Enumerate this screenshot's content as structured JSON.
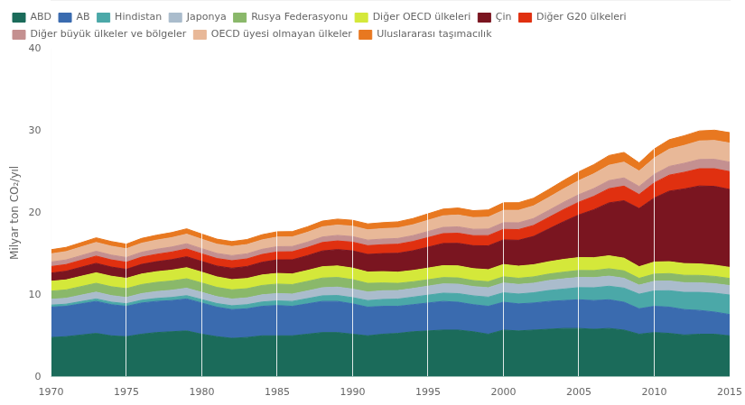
{
  "chart_data": {
    "type": "area",
    "stacked": true,
    "ylabel": "Milyar ton CO₂/yıl",
    "x": [
      1970,
      1971,
      1972,
      1973,
      1974,
      1975,
      1976,
      1977,
      1978,
      1979,
      1980,
      1981,
      1982,
      1983,
      1984,
      1985,
      1986,
      1987,
      1988,
      1989,
      1990,
      1991,
      1992,
      1993,
      1994,
      1995,
      1996,
      1997,
      1998,
      1999,
      2000,
      2001,
      2002,
      2003,
      2004,
      2005,
      2006,
      2007,
      2008,
      2009,
      2010,
      2011,
      2012,
      2013,
      2014,
      2015
    ],
    "series": [
      {
        "name": "ABD",
        "color": "#1b6b5a",
        "values": [
          4.8,
          4.9,
          5.1,
          5.3,
          5.0,
          4.9,
          5.2,
          5.4,
          5.5,
          5.6,
          5.2,
          4.9,
          4.7,
          4.8,
          5.0,
          5.0,
          5.0,
          5.2,
          5.4,
          5.4,
          5.2,
          5.0,
          5.2,
          5.3,
          5.5,
          5.6,
          5.7,
          5.7,
          5.5,
          5.2,
          5.7,
          5.6,
          5.7,
          5.8,
          5.9,
          5.9,
          5.8,
          5.9,
          5.7,
          5.2,
          5.4,
          5.3,
          5.1,
          5.2,
          5.2,
          5.0
        ]
      },
      {
        "name": "AB",
        "color": "#3a6baf",
        "values": [
          3.7,
          3.7,
          3.8,
          3.9,
          3.8,
          3.7,
          3.8,
          3.8,
          3.8,
          3.9,
          3.8,
          3.6,
          3.5,
          3.5,
          3.6,
          3.7,
          3.6,
          3.7,
          3.8,
          3.8,
          3.7,
          3.5,
          3.4,
          3.3,
          3.3,
          3.4,
          3.5,
          3.4,
          3.3,
          3.4,
          3.4,
          3.3,
          3.3,
          3.4,
          3.4,
          3.5,
          3.5,
          3.5,
          3.4,
          3.1,
          3.2,
          3.2,
          3.1,
          2.9,
          2.7,
          2.6
        ]
      },
      {
        "name": "Hindistan",
        "color": "#4ba8a8",
        "values": [
          0.25,
          0.26,
          0.28,
          0.3,
          0.31,
          0.32,
          0.34,
          0.36,
          0.38,
          0.4,
          0.42,
          0.44,
          0.47,
          0.5,
          0.53,
          0.56,
          0.6,
          0.64,
          0.68,
          0.72,
          0.76,
          0.8,
          0.84,
          0.88,
          0.92,
          0.96,
          1.0,
          1.05,
          1.08,
          1.12,
          1.15,
          1.2,
          1.25,
          1.32,
          1.4,
          1.48,
          1.56,
          1.65,
          1.72,
          1.78,
          1.88,
          2.0,
          2.1,
          2.2,
          2.3,
          2.38
        ]
      },
      {
        "name": "Japonya",
        "color": "#aabccc",
        "values": [
          0.7,
          0.72,
          0.78,
          0.83,
          0.8,
          0.76,
          0.81,
          0.84,
          0.88,
          0.91,
          0.88,
          0.84,
          0.82,
          0.83,
          0.87,
          0.9,
          0.9,
          0.93,
          0.99,
          1.02,
          1.05,
          1.05,
          1.06,
          1.04,
          1.05,
          1.1,
          1.14,
          1.15,
          1.13,
          1.15,
          1.2,
          1.17,
          1.17,
          1.22,
          1.25,
          1.24,
          1.23,
          1.23,
          1.2,
          1.1,
          1.17,
          1.19,
          1.18,
          1.17,
          1.16,
          1.15
        ]
      },
      {
        "name": "Rusya Federasyonu",
        "color": "#8ab86a",
        "values": [
          1.0,
          1.02,
          1.05,
          1.08,
          1.08,
          1.08,
          1.1,
          1.12,
          1.13,
          1.15,
          1.15,
          1.13,
          1.12,
          1.12,
          1.14,
          1.15,
          1.15,
          1.17,
          1.18,
          1.18,
          1.15,
          1.05,
          0.95,
          0.88,
          0.82,
          0.78,
          0.77,
          0.76,
          0.73,
          0.73,
          0.75,
          0.75,
          0.77,
          0.79,
          0.82,
          0.85,
          0.87,
          0.9,
          0.9,
          0.83,
          0.88,
          0.9,
          0.9,
          0.9,
          0.89,
          0.87
        ]
      },
      {
        "name": "Diğer OECD ülkeleri",
        "color": "#d4e83a",
        "values": [
          1.2,
          1.22,
          1.25,
          1.28,
          1.28,
          1.25,
          1.28,
          1.3,
          1.32,
          1.35,
          1.32,
          1.28,
          1.25,
          1.25,
          1.28,
          1.3,
          1.3,
          1.33,
          1.38,
          1.4,
          1.4,
          1.38,
          1.38,
          1.37,
          1.38,
          1.42,
          1.45,
          1.47,
          1.45,
          1.47,
          1.5,
          1.48,
          1.48,
          1.5,
          1.55,
          1.57,
          1.57,
          1.58,
          1.55,
          1.42,
          1.47,
          1.45,
          1.43,
          1.4,
          1.37,
          1.35
        ]
      },
      {
        "name": "Çin",
        "color": "#7a1520",
        "values": [
          1.0,
          1.05,
          1.1,
          1.15,
          1.12,
          1.1,
          1.18,
          1.22,
          1.28,
          1.33,
          1.3,
          1.32,
          1.38,
          1.45,
          1.55,
          1.65,
          1.72,
          1.8,
          1.92,
          2.0,
          2.1,
          2.15,
          2.2,
          2.3,
          2.4,
          2.55,
          2.7,
          2.75,
          2.8,
          2.9,
          3.0,
          3.15,
          3.45,
          4.0,
          4.6,
          5.2,
          5.85,
          6.45,
          7.0,
          7.1,
          7.8,
          8.6,
          9.1,
          9.5,
          9.6,
          9.5
        ]
      },
      {
        "name": "Diğer G20 ülkeleri",
        "color": "#e03010",
        "values": [
          0.8,
          0.82,
          0.85,
          0.88,
          0.87,
          0.86,
          0.88,
          0.9,
          0.92,
          0.95,
          0.93,
          0.92,
          0.92,
          0.93,
          0.95,
          0.97,
          0.98,
          1.0,
          1.03,
          1.05,
          1.06,
          1.06,
          1.08,
          1.1,
          1.13,
          1.17,
          1.2,
          1.23,
          1.22,
          1.25,
          1.28,
          1.3,
          1.34,
          1.4,
          1.48,
          1.55,
          1.63,
          1.73,
          1.78,
          1.7,
          1.85,
          1.95,
          2.03,
          2.1,
          2.15,
          2.17
        ]
      },
      {
        "name": "Diğer büyük ülkeler ve bölgeler",
        "color": "#c49090",
        "values": [
          0.55,
          0.56,
          0.57,
          0.59,
          0.59,
          0.58,
          0.6,
          0.61,
          0.62,
          0.64,
          0.63,
          0.62,
          0.62,
          0.62,
          0.63,
          0.64,
          0.64,
          0.65,
          0.67,
          0.68,
          0.68,
          0.68,
          0.69,
          0.7,
          0.72,
          0.74,
          0.76,
          0.78,
          0.78,
          0.8,
          0.82,
          0.83,
          0.84,
          0.86,
          0.89,
          0.92,
          0.95,
          0.98,
          1.0,
          0.98,
          1.03,
          1.07,
          1.1,
          1.13,
          1.15,
          1.16
        ]
      },
      {
        "name": "OECD üyesi olmayan ülkeler",
        "color": "#e8b898",
        "values": [
          1.0,
          1.02,
          1.05,
          1.08,
          1.08,
          1.07,
          1.1,
          1.12,
          1.14,
          1.17,
          1.15,
          1.13,
          1.12,
          1.13,
          1.15,
          1.17,
          1.17,
          1.2,
          1.24,
          1.26,
          1.27,
          1.26,
          1.27,
          1.29,
          1.32,
          1.37,
          1.41,
          1.44,
          1.43,
          1.46,
          1.5,
          1.52,
          1.54,
          1.58,
          1.64,
          1.72,
          1.8,
          1.88,
          1.93,
          1.88,
          2.0,
          2.1,
          2.18,
          2.26,
          2.3,
          2.32
        ]
      },
      {
        "name": "Uluslararası taşımacılık",
        "color": "#e87820",
        "values": [
          0.5,
          0.51,
          0.53,
          0.56,
          0.57,
          0.56,
          0.58,
          0.6,
          0.62,
          0.65,
          0.63,
          0.61,
          0.6,
          0.61,
          0.63,
          0.65,
          0.65,
          0.67,
          0.7,
          0.72,
          0.72,
          0.72,
          0.73,
          0.74,
          0.76,
          0.79,
          0.82,
          0.85,
          0.84,
          0.87,
          0.92,
          0.93,
          0.94,
          0.97,
          1.02,
          1.07,
          1.12,
          1.18,
          1.18,
          1.0,
          1.1,
          1.15,
          1.18,
          1.22,
          1.25,
          1.27
        ]
      }
    ],
    "xlim": [
      1970,
      2015
    ],
    "xticks": [
      1970,
      1975,
      1980,
      1985,
      1990,
      1995,
      2000,
      2005,
      2010,
      2015
    ],
    "ylim": [
      0,
      40
    ],
    "yticks": [
      0,
      10,
      20,
      30,
      40
    ],
    "grid": "x",
    "legend": "top"
  }
}
